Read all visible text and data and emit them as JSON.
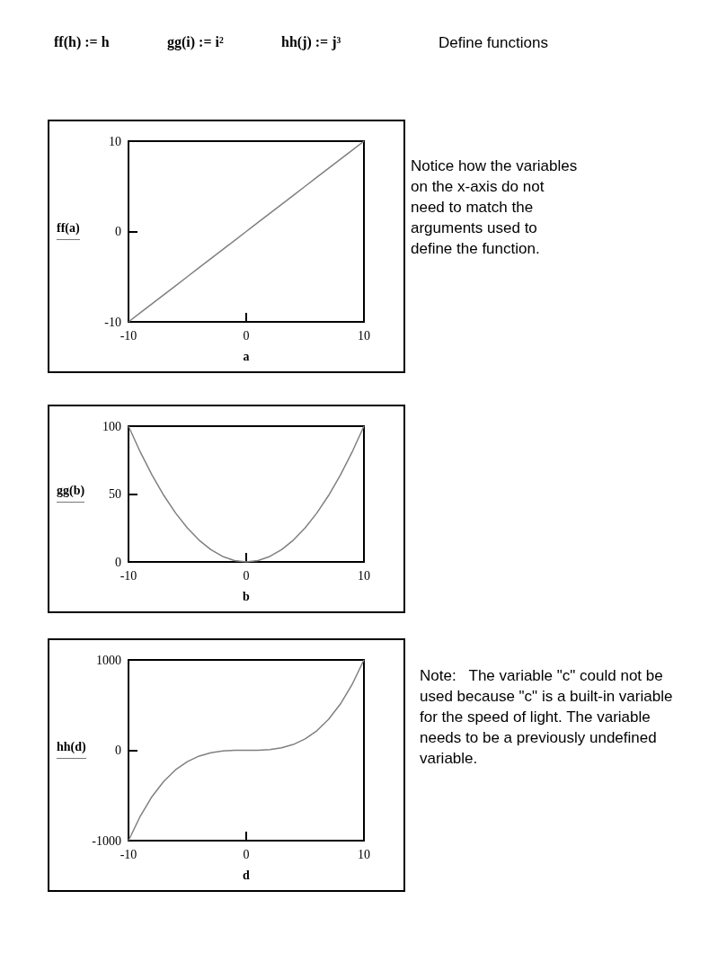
{
  "chart_data": [
    {
      "type": "line",
      "xlabel": "a",
      "ylabel": "ff(a)",
      "annotations": [
        "ff(h) := h",
        "gg(i) := i²",
        "hh(j) := j³",
        "Define functions",
        "Notice how the variables on the x-axis do not need to match the arguments used to define the function."
      ],
      "x": [
        -10,
        -9,
        -8,
        -7,
        -6,
        -5,
        -4,
        -3,
        -2,
        -1,
        0,
        1,
        2,
        3,
        4,
        5,
        6,
        7,
        8,
        9,
        10
      ],
      "series": [
        {
          "color": "#808080",
          "values": [
            -10,
            -9,
            -8,
            -7,
            -6,
            -5,
            -4,
            -3,
            -2,
            -1,
            0,
            1,
            2,
            3,
            4,
            5,
            6,
            7,
            8,
            9,
            10
          ]
        }
      ],
      "xlim": [
        -10,
        10
      ],
      "xticks": [
        -10,
        0,
        10
      ],
      "ylim": [
        -10,
        10
      ],
      "yticks": [
        -10,
        0,
        10
      ],
      "marker": "none"
    },
    {
      "type": "line",
      "xlabel": "b",
      "ylabel": "gg(b)",
      "x": [
        -10,
        -9,
        -8,
        -7,
        -6,
        -5,
        -4,
        -3,
        -2,
        -1,
        0,
        1,
        2,
        3,
        4,
        5,
        6,
        7,
        8,
        9,
        10
      ],
      "series": [
        {
          "color": "#808080",
          "values": [
            100,
            81,
            64,
            49,
            36,
            25,
            16,
            9,
            4,
            1,
            0,
            1,
            4,
            9,
            16,
            25,
            36,
            49,
            64,
            81,
            100
          ]
        }
      ],
      "xlim": [
        -10,
        10
      ],
      "xticks": [
        -10,
        0,
        10
      ],
      "ylim": [
        0,
        100
      ],
      "yticks": [
        0,
        50,
        100
      ],
      "marker": "none"
    },
    {
      "type": "line",
      "xlabel": "d",
      "ylabel": "hh(d)",
      "annotations": [
        "Note:   The variable \"c\" could not be used because \"c\" is a built-in variable for the speed of light. The variable needs to be a previously undefined variable."
      ],
      "x": [
        -10,
        -9,
        -8,
        -7,
        -6,
        -5,
        -4,
        -3,
        -2,
        -1,
        0,
        1,
        2,
        3,
        4,
        5,
        6,
        7,
        8,
        9,
        10
      ],
      "series": [
        {
          "color": "#808080",
          "values": [
            -1000,
            -729,
            -512,
            -343,
            -216,
            -125,
            -64,
            -27,
            -8,
            -1,
            0,
            1,
            8,
            27,
            64,
            125,
            216,
            343,
            512,
            729,
            1000
          ]
        }
      ],
      "xlim": [
        -10,
        10
      ],
      "xticks": [
        -10,
        0,
        10
      ],
      "ylim": [
        -1000,
        1000
      ],
      "yticks": [
        -1000,
        0,
        1000
      ],
      "marker": "none"
    }
  ]
}
